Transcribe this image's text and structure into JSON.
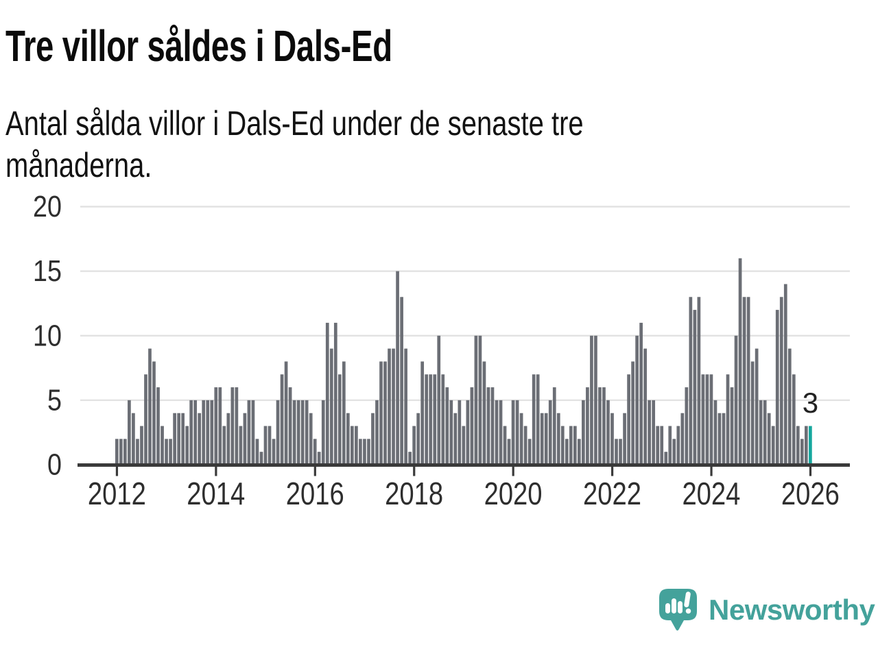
{
  "header": {
    "title": "Tre villor såldes i Dals-Ed",
    "subtitle": "Antal sålda villor i Dals-Ed under de senaste tre månaderna."
  },
  "logo": {
    "text": "Newsworthy"
  },
  "chart_data": {
    "type": "bar",
    "title": "Tre villor såldes i Dals-Ed",
    "subtitle": "Antal sålda villor i Dals-Ed under de senaste tre månaderna.",
    "frequency": "monthly",
    "start": {
      "year": 2012,
      "month": 1
    },
    "values": [
      2,
      2,
      2,
      5,
      4,
      2,
      3,
      7,
      9,
      8,
      6,
      3,
      2,
      2,
      4,
      4,
      4,
      3,
      5,
      5,
      4,
      5,
      5,
      5,
      6,
      6,
      3,
      4,
      6,
      6,
      3,
      4,
      5,
      5,
      2,
      1,
      3,
      3,
      2,
      5,
      7,
      8,
      6,
      5,
      5,
      5,
      5,
      4,
      2,
      1,
      5,
      11,
      9,
      11,
      7,
      8,
      4,
      3,
      3,
      2,
      2,
      2,
      4,
      5,
      8,
      8,
      9,
      9,
      15,
      13,
      9,
      1,
      3,
      4,
      8,
      7,
      7,
      7,
      10,
      7,
      6,
      5,
      4,
      5,
      3,
      5,
      6,
      10,
      10,
      8,
      6,
      6,
      5,
      5,
      3,
      2,
      5,
      5,
      4,
      3,
      2,
      7,
      7,
      4,
      4,
      5,
      6,
      4,
      3,
      2,
      3,
      3,
      2,
      5,
      6,
      10,
      10,
      6,
      6,
      5,
      4,
      2,
      2,
      4,
      7,
      8,
      10,
      11,
      9,
      5,
      5,
      3,
      3,
      1,
      3,
      2,
      3,
      4,
      6,
      13,
      12,
      13,
      7,
      7,
      7,
      5,
      4,
      4,
      7,
      6,
      10,
      16,
      13,
      13,
      8,
      9,
      5,
      5,
      4,
      3,
      12,
      13,
      14,
      9,
      7,
      3,
      2,
      3,
      3
    ],
    "highlight_last": true,
    "last_value_annotation": "3",
    "y_ticks": [
      0,
      5,
      10,
      15,
      20
    ],
    "ylim": [
      0,
      20
    ],
    "x_tick_years": [
      "2012",
      "2014",
      "2016",
      "2018",
      "2020",
      "2022",
      "2024",
      "2026"
    ],
    "grid": true,
    "colors": {
      "bar": "#6b6e75",
      "highlight": "#15a79e",
      "gridline": "#e2e2e2",
      "axis": "#3a3a3a",
      "tick_label": "#2e2e2e",
      "annotation": "#222222",
      "logo": "#44a29b"
    }
  }
}
